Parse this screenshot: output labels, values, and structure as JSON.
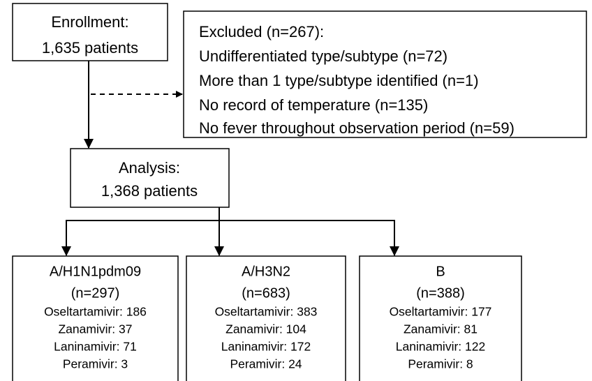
{
  "enrollment": {
    "lines": [
      "Enrollment:",
      "1,635 patients"
    ]
  },
  "excluded": {
    "lines": [
      "Excluded (n=267):",
      "Undifferentiated type/subtype (n=72)",
      "More than 1 type/subtype identified (n=1)",
      "No record of temperature (n=135)",
      "No fever throughout observation period (n=59)"
    ]
  },
  "analysis": {
    "lines": [
      "Analysis:",
      "1,368 patients"
    ]
  },
  "groups": [
    {
      "lines": [
        "A/H1N1pdm09",
        "(n=297)",
        "Oseltartamivir: 186",
        "Zanamivir: 37",
        "Laninamivir: 71",
        "Peramivir: 3"
      ]
    },
    {
      "lines": [
        "A/H3N2",
        "(n=683)",
        "Oseltartamivir: 383",
        "Zanamivir: 104",
        "Laninamivir: 172",
        "Peramivir: 24"
      ]
    },
    {
      "lines": [
        "B",
        "(n=388)",
        "Oseltartamivir: 177",
        "Zanamivir: 81",
        "Laninamivir: 122",
        "Peramivir: 8"
      ]
    }
  ]
}
